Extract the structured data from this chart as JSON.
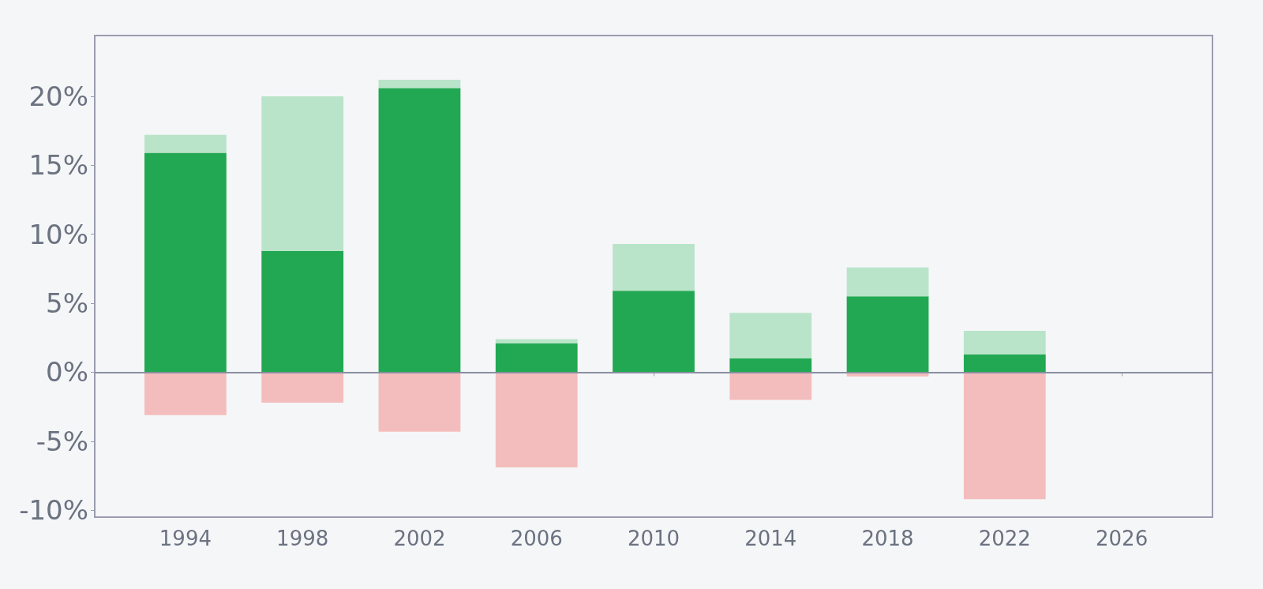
{
  "chart_data": {
    "type": "bar",
    "stacked": true,
    "x": [
      1994,
      1998,
      2002,
      2006,
      2010,
      2014,
      2018,
      2022
    ],
    "series": [
      {
        "color": "#22a852",
        "values": [
          15.9,
          8.8,
          20.6,
          2.1,
          5.9,
          1.0,
          5.5,
          1.3
        ]
      },
      {
        "color": "#b9e4c9",
        "values": [
          1.3,
          11.2,
          0.6,
          0.3,
          3.4,
          3.3,
          2.1,
          1.7
        ]
      },
      {
        "color": "#f4bdbd",
        "values": [
          -3.1,
          -2.2,
          -4.3,
          -6.9,
          null,
          -2.0,
          -0.3,
          -9.2
        ]
      }
    ],
    "xlim": [
      1990.9,
      2029.1
    ],
    "xticks": [
      1994,
      1998,
      2002,
      2006,
      2010,
      2014,
      2018,
      2022,
      2026
    ],
    "ylim": [
      -10.5,
      24.4
    ],
    "yticks": [
      {
        "value": -10,
        "label": "-10%"
      },
      {
        "value": -5,
        "label": "-5%"
      },
      {
        "value": 0,
        "label": "0%"
      },
      {
        "value": 5,
        "label": "5%"
      },
      {
        "value": 10,
        "label": "10%"
      },
      {
        "value": 15,
        "label": "15%"
      },
      {
        "value": 20,
        "label": "20%"
      }
    ],
    "ref_lines": [
      {
        "axis": "y",
        "value": 0,
        "color": "#8a8fa0"
      }
    ],
    "grid": false
  }
}
